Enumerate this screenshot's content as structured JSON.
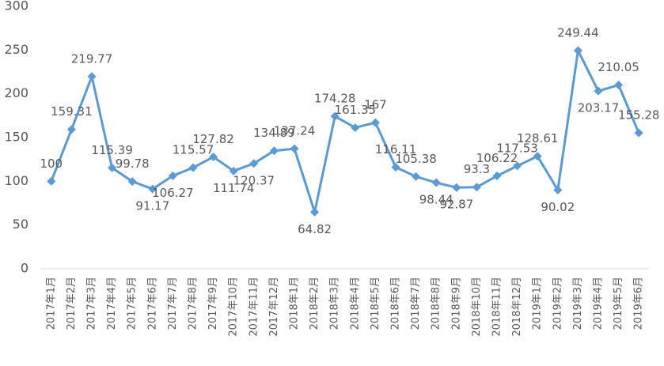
{
  "chart_data": {
    "type": "line",
    "categories": [
      "2017年1月",
      "2017年2月",
      "2017年3月",
      "2017年4月",
      "2017年5月",
      "2017年6月",
      "2017年7月",
      "2017年8月",
      "2017年9月",
      "2017年10月",
      "2017年11月",
      "2017年12月",
      "2018年1月",
      "2018年2月",
      "2018年3月",
      "2018年4月",
      "2018年5月",
      "2018年6月",
      "2018年7月",
      "2018年8月",
      "2018年9月",
      "2018年10月",
      "2018年11月",
      "2018年12月",
      "2019年1月",
      "2019年2月",
      "2019年3月",
      "2019年4月",
      "2019年5月",
      "2019年6月"
    ],
    "series": [
      {
        "color": "#5b9bd5",
        "values": [
          100,
          159.31,
          219.77,
          115.39,
          99.78,
          91.17,
          106.27,
          115.57,
          127.82,
          111.74,
          120.37,
          134.89,
          137.24,
          64.82,
          174.28,
          161.35,
          167,
          116.11,
          105.38,
          98.44,
          92.87,
          93.3,
          106.22,
          117.53,
          128.61,
          90.02,
          249.44,
          203.17,
          210.05,
          155.28
        ]
      }
    ],
    "ylim": [
      0,
      300
    ],
    "yticks": [
      0,
      50,
      100,
      150,
      200,
      250,
      300
    ],
    "grid": false
  }
}
